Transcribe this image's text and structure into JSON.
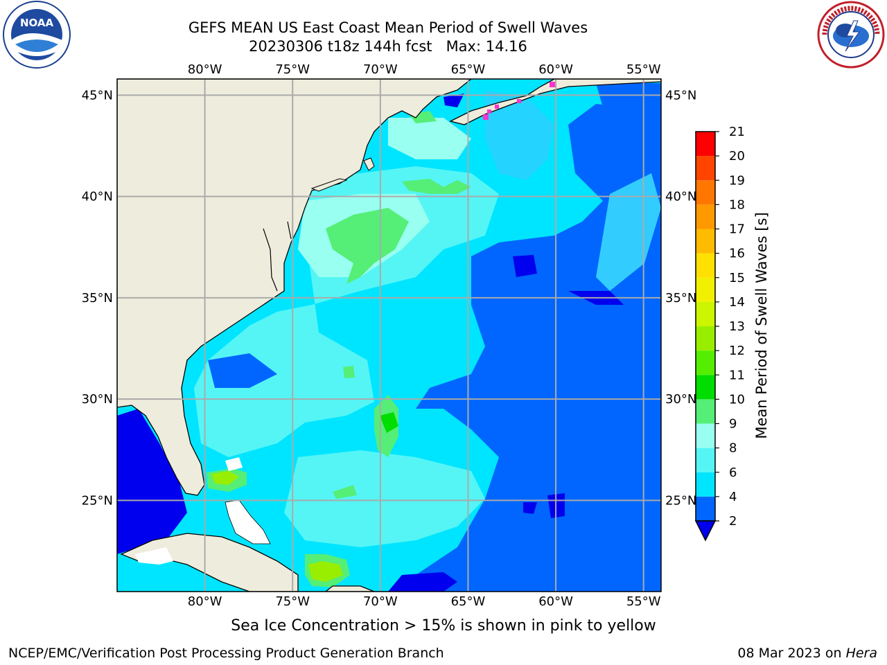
{
  "header": {
    "title_line1": "GEFS MEAN US East Coast Mean Period of Swell Waves",
    "title_line2": "20230306 t18z 144h fcst   Max: 14.16"
  },
  "logos": {
    "left": "noaa-logo",
    "right": "nws-logo",
    "left_text": "NOAA",
    "right_text": "NATIONAL WEATHER SERVICE"
  },
  "map": {
    "projection": "cylindrical",
    "lon_range": [
      -85,
      -54
    ],
    "lat_range": [
      20.5,
      45.8
    ],
    "lon_ticks": [
      "80°W",
      "75°W",
      "70°W",
      "65°W",
      "60°W",
      "55°W"
    ],
    "lat_ticks": [
      "45°N",
      "40°N",
      "35°N",
      "30°N",
      "25°N"
    ],
    "grid": true,
    "land_color": "#eeecdc",
    "grid_color": "#aaaaaa"
  },
  "colorbar": {
    "label": "Mean Period of Swell Waves [s]",
    "ticks": [
      "2",
      "4",
      "6",
      "8",
      "9",
      "10",
      "11",
      "12",
      "13",
      "14",
      "15",
      "16",
      "17",
      "18",
      "19",
      "20",
      "21"
    ],
    "colors": [
      "#0000ee",
      "#0066ff",
      "#00e5ff",
      "#55f5f5",
      "#99fff0",
      "#55ee77",
      "#00dd00",
      "#55ee00",
      "#99ee00",
      "#ccf500",
      "#f0f000",
      "#ffe000",
      "#ffbb00",
      "#ff9900",
      "#ff7700",
      "#ff4400",
      "#ff0000"
    ]
  },
  "footer": {
    "ice_note": "Sea Ice Concentration > 15% is shown in pink to yellow",
    "credit": "NCEP/EMC/Verification Post Processing Product Generation Branch",
    "date": "08 Mar 2023 on ",
    "machine": "Hera"
  }
}
